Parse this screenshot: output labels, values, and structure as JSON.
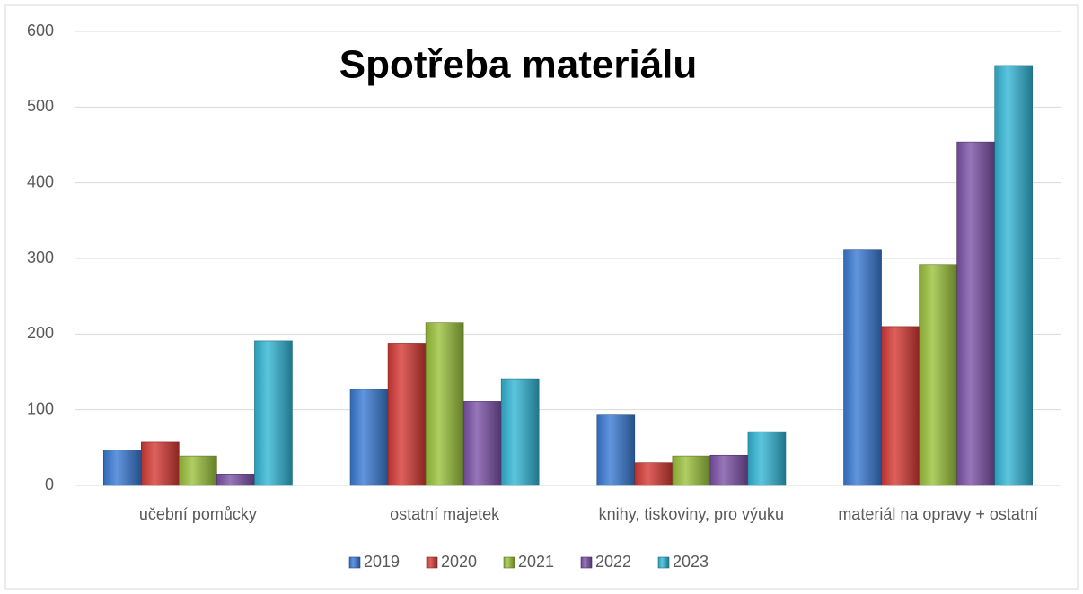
{
  "chart_data": {
    "type": "bar",
    "title": "Spotřeba materiálu",
    "categories": [
      "učební pomůcky",
      "ostatní majetek",
      "knihy, tiskoviny, pro výuku",
      "materiál na opravy + ostatní"
    ],
    "series": [
      {
        "name": "2019",
        "color": "#3a7bd5",
        "values": [
          47,
          127,
          94,
          311
        ]
      },
      {
        "name": "2020",
        "color": "#d63a35",
        "values": [
          57,
          188,
          30,
          210
        ]
      },
      {
        "name": "2021",
        "color": "#9bc23c",
        "values": [
          39,
          215,
          39,
          292
        ]
      },
      {
        "name": "2022",
        "color": "#7d52a8",
        "values": [
          15,
          111,
          40,
          454
        ]
      },
      {
        "name": "2023",
        "color": "#33b6d6",
        "values": [
          191,
          141,
          71,
          555
        ]
      }
    ],
    "ylim": [
      0,
      600
    ],
    "yticks": [
      0,
      100,
      200,
      300,
      400,
      500,
      600
    ],
    "grid": true,
    "legend": "bottom"
  }
}
